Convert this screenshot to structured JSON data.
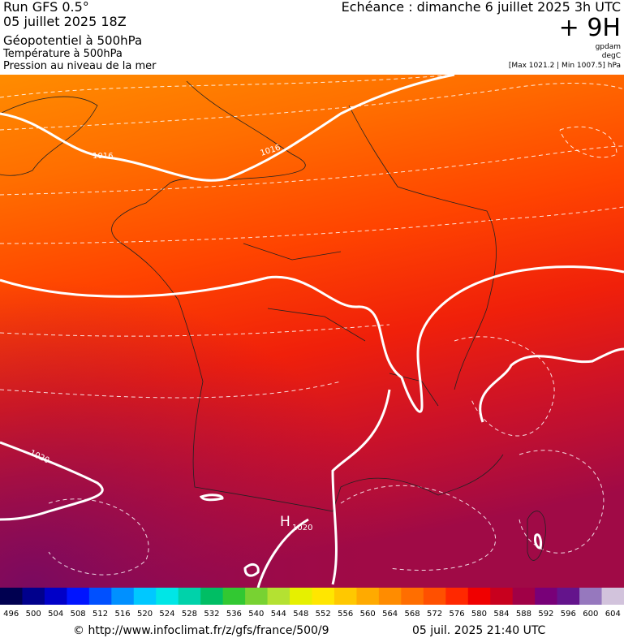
{
  "header": {
    "run": "Run GFS 0.5°",
    "run_date": "05 juillet 2025 18Z",
    "field1": "Géopotentiel à 500hPa",
    "field2": "Température à 500hPa",
    "field3": "Pression au niveau de la mer",
    "valid": "Echéance : dimanche 6 juillet 2025 3h UTC",
    "lead": "+ 9H",
    "unit1": "gpdam",
    "unit2": "degC",
    "pressure_range": "[Max 1021.2 | Min 1007.5] hPa"
  },
  "map": {
    "isobar_labels": [
      "1016",
      "1016",
      "1020"
    ],
    "high": {
      "symbol": "H",
      "value": "1020"
    }
  },
  "colorbar": {
    "ticks": [
      496,
      500,
      504,
      508,
      512,
      516,
      520,
      524,
      528,
      532,
      536,
      540,
      544,
      548,
      552,
      556,
      560,
      564,
      568,
      572,
      576,
      580,
      584,
      588,
      592,
      596,
      600,
      604
    ],
    "colors": [
      "#000050",
      "#00008c",
      "#0000c8",
      "#0014ff",
      "#0050ff",
      "#0090ff",
      "#00c8ff",
      "#00e6e6",
      "#00d2aa",
      "#00be64",
      "#32c832",
      "#78d232",
      "#b4e132",
      "#e6f000",
      "#ffe600",
      "#ffc800",
      "#ffaa00",
      "#ff8c00",
      "#ff6e00",
      "#ff5000",
      "#ff2800",
      "#f00000",
      "#c8001e",
      "#a00046",
      "#780078",
      "#64148c",
      "#9678be",
      "#d2c3dc"
    ]
  },
  "footer": {
    "source": "© http://www.infoclimat.fr/z/gfs/france/500/9",
    "generated": "05 juil. 2025 21:40 UTC"
  }
}
